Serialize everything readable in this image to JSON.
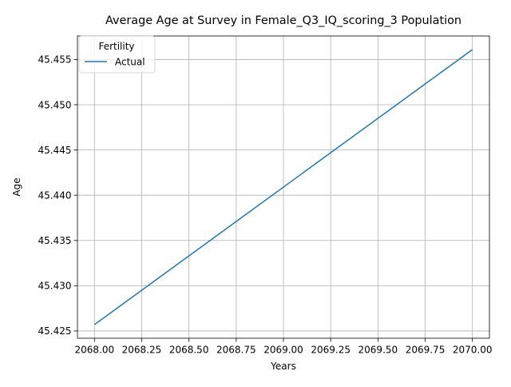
{
  "chart_data": {
    "type": "line",
    "title": "Average Age at Survey in Female_Q3_IQ_scoring_3 Population",
    "xlabel": "Years",
    "ylabel": "Age",
    "xlim": [
      2067.91,
      2070.09
    ],
    "ylim": [
      45.4242,
      45.4576
    ],
    "x_ticks": [
      2068.0,
      2068.25,
      2068.5,
      2068.75,
      2069.0,
      2069.25,
      2069.5,
      2069.75,
      2070.0
    ],
    "x_tick_labels": [
      "2068.00",
      "2068.25",
      "2068.50",
      "2068.75",
      "2069.00",
      "2069.25",
      "2069.50",
      "2069.75",
      "2070.00"
    ],
    "y_ticks": [
      45.425,
      45.43,
      45.435,
      45.44,
      45.445,
      45.45,
      45.455
    ],
    "y_tick_labels": [
      "45.425",
      "45.430",
      "45.435",
      "45.440",
      "45.445",
      "45.450",
      "45.455"
    ],
    "grid": true,
    "legend": {
      "title": "Fertility",
      "placement": "top-left"
    },
    "series": [
      {
        "name": "Actual",
        "color": "#1f77b4",
        "x": [
          2068.0,
          2070.0
        ],
        "y": [
          45.4257,
          45.4561
        ]
      }
    ]
  }
}
